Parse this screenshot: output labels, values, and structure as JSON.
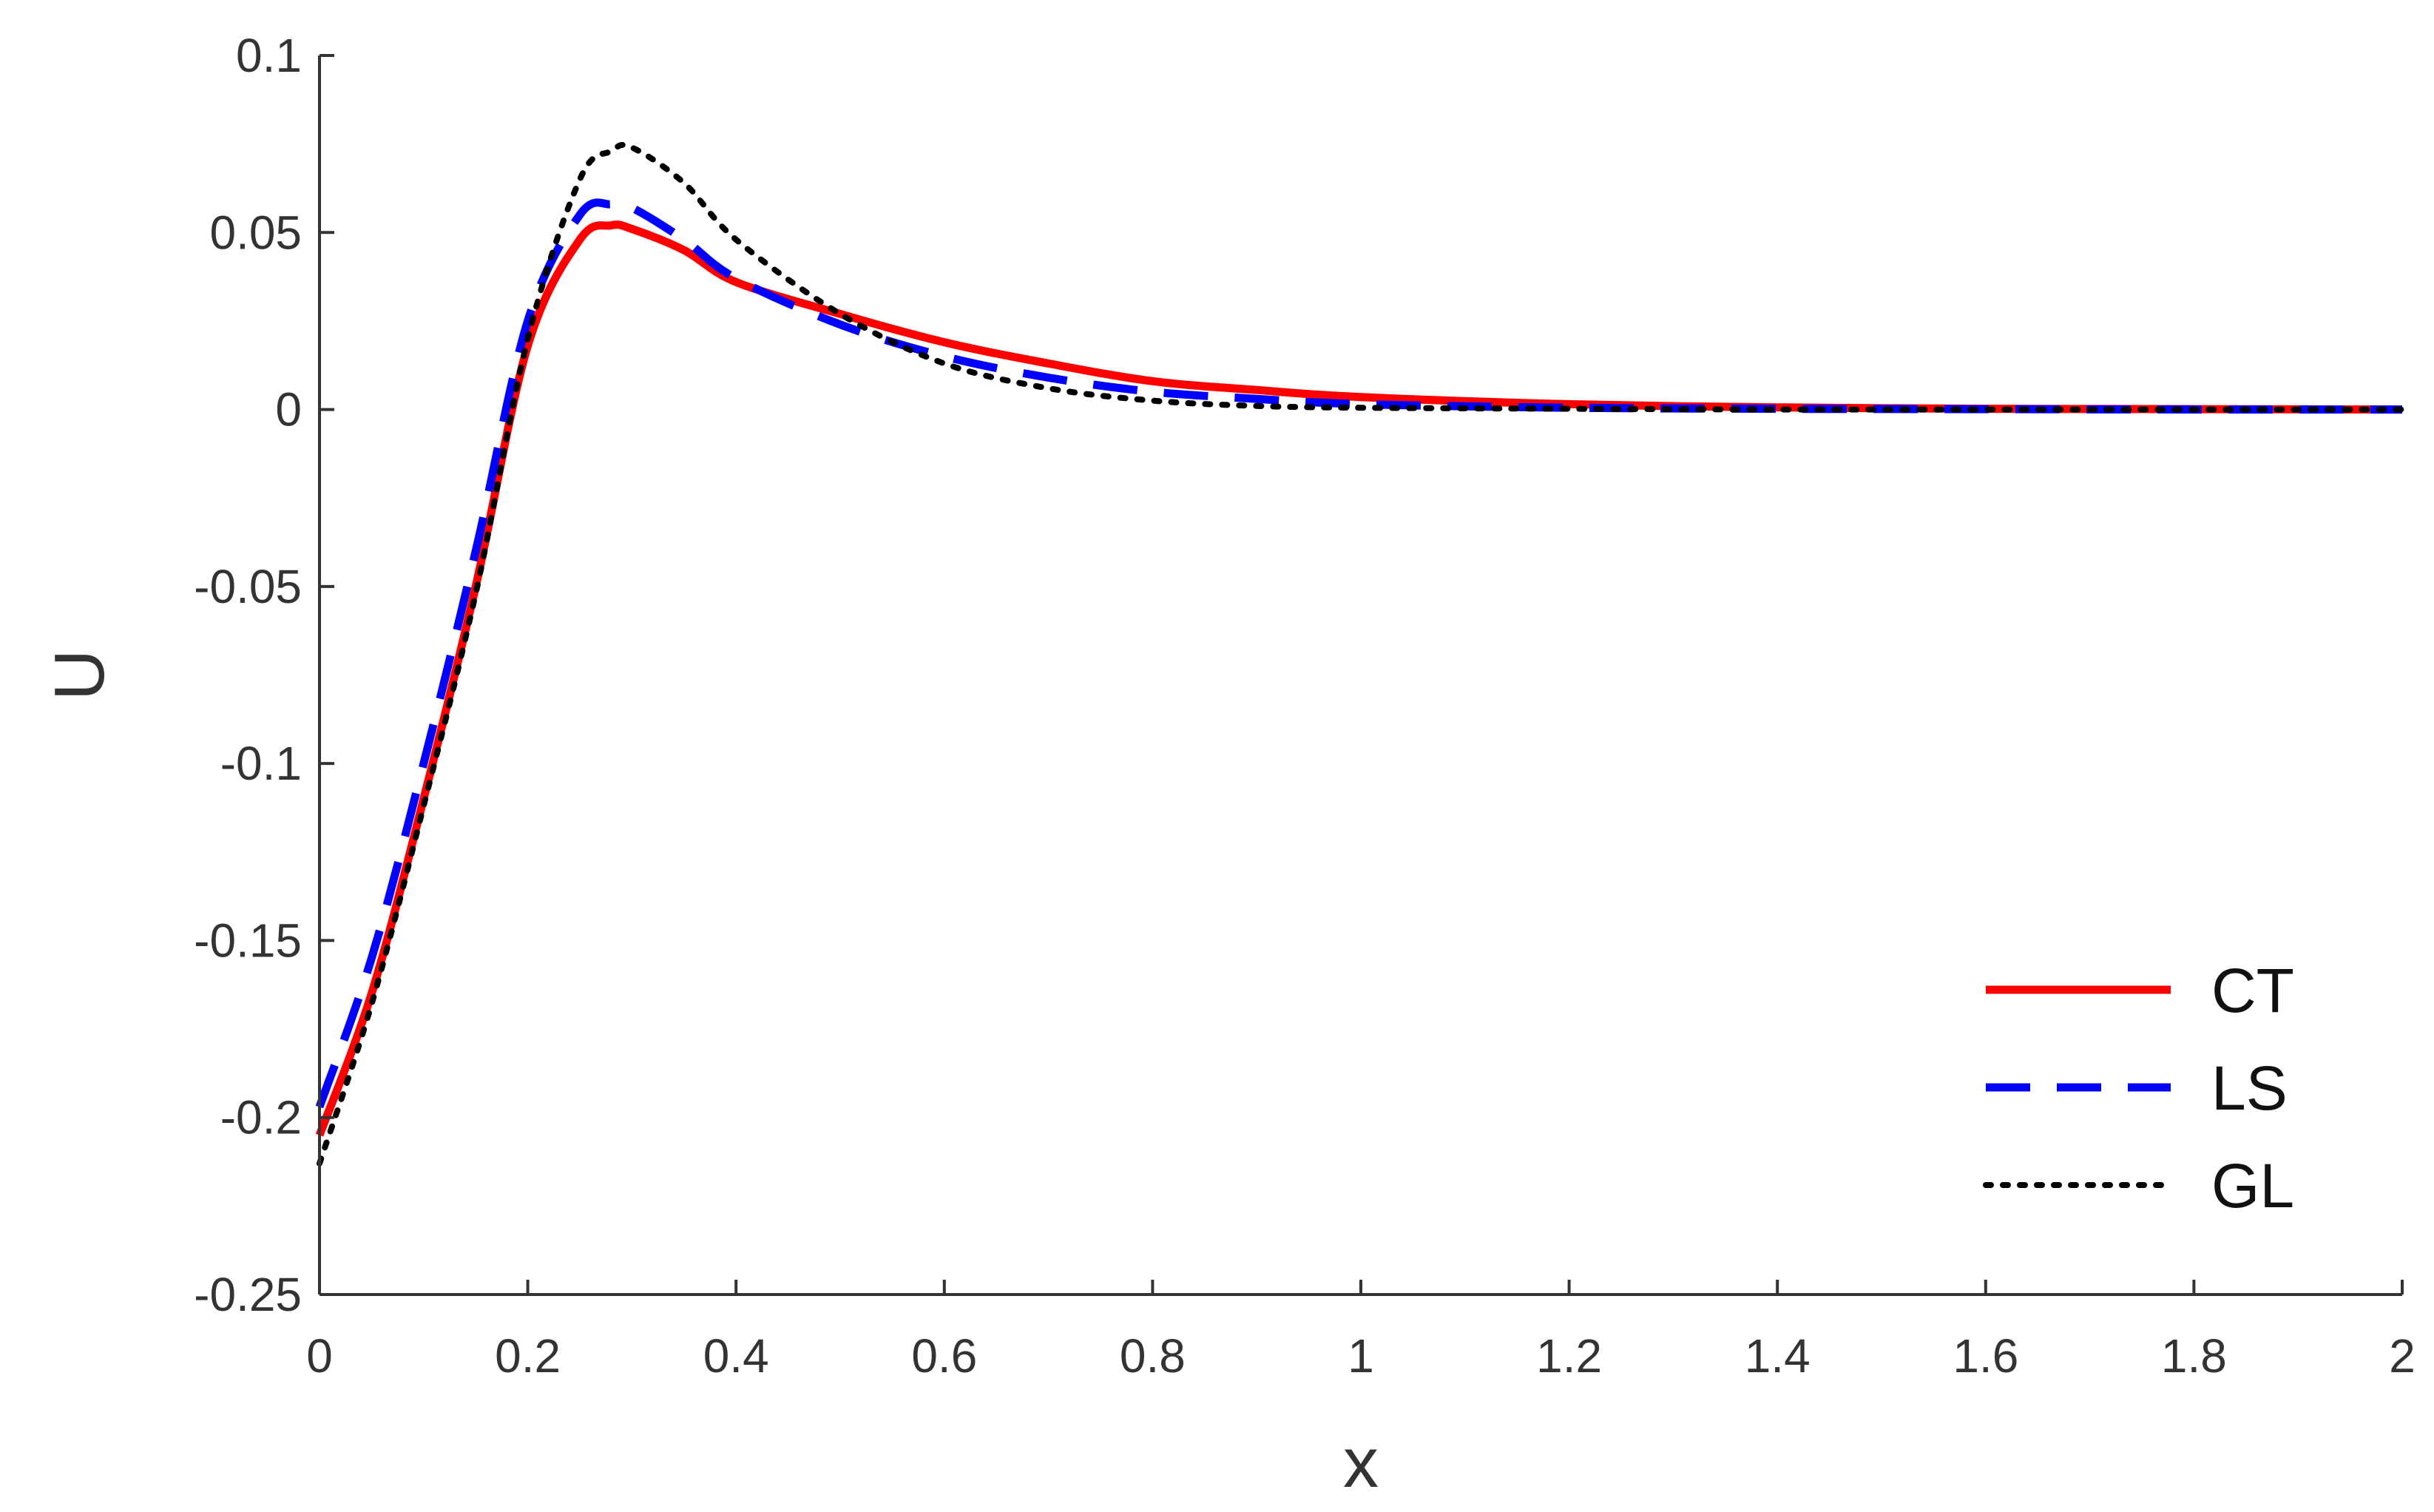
{
  "chart_data": {
    "type": "line",
    "title": "",
    "xlabel": "x",
    "ylabel": "U",
    "xlim": [
      0,
      2
    ],
    "ylim": [
      -0.25,
      0.1
    ],
    "xticks": [
      0,
      0.2,
      0.4,
      0.6,
      0.8,
      1,
      1.2,
      1.4,
      1.6,
      1.8,
      2
    ],
    "xtick_labels": [
      "0",
      "0.2",
      "0.4",
      "0.6",
      "0.8",
      "1",
      "1.2",
      "1.4",
      "1.6",
      "1.8",
      "2"
    ],
    "yticks": [
      0.1,
      0.05,
      0,
      -0.05,
      -0.1,
      -0.15,
      -0.2,
      -0.25
    ],
    "ytick_labels": [
      "0.1",
      "0.05",
      "0",
      "-0.05",
      "-0.1",
      "-0.15",
      "-0.2",
      "-0.25"
    ],
    "grid": false,
    "legend_position": "bottom-right",
    "series": [
      {
        "name": "CT",
        "color": "#ff0000",
        "style": "solid",
        "x": [
          0,
          0.05,
          0.1,
          0.15,
          0.2,
          0.25,
          0.28,
          0.3,
          0.35,
          0.4,
          0.5,
          0.6,
          0.7,
          0.8,
          0.9,
          1.0,
          1.2,
          1.4,
          1.6,
          1.8,
          2.0
        ],
        "y": [
          -0.205,
          -0.165,
          -0.11,
          -0.05,
          0.018,
          0.048,
          0.052,
          0.051,
          0.045,
          0.036,
          0.027,
          0.019,
          0.013,
          0.008,
          0.0055,
          0.0035,
          0.0015,
          0.0006,
          0.0002,
          0.0001,
          0.0
        ]
      },
      {
        "name": "LS",
        "color": "#0000ff",
        "style": "dashed",
        "x": [
          0,
          0.05,
          0.1,
          0.15,
          0.2,
          0.25,
          0.28,
          0.3,
          0.35,
          0.4,
          0.5,
          0.6,
          0.7,
          0.8,
          0.9,
          1.0,
          1.2,
          1.4,
          1.6,
          1.8,
          2.0
        ],
        "y": [
          -0.197,
          -0.155,
          -0.1,
          -0.04,
          0.025,
          0.055,
          0.058,
          0.057,
          0.048,
          0.037,
          0.024,
          0.015,
          0.009,
          0.005,
          0.003,
          0.0015,
          0.0005,
          0.0002,
          0.0001,
          0.0,
          0.0
        ]
      },
      {
        "name": "GL",
        "color": "#000000",
        "style": "dotted",
        "x": [
          0,
          0.05,
          0.1,
          0.15,
          0.2,
          0.25,
          0.28,
          0.3,
          0.35,
          0.4,
          0.5,
          0.6,
          0.7,
          0.8,
          0.9,
          1.0,
          1.2,
          1.4,
          1.6,
          1.8,
          2.0
        ],
        "y": [
          -0.213,
          -0.168,
          -0.112,
          -0.052,
          0.02,
          0.065,
          0.073,
          0.074,
          0.064,
          0.048,
          0.027,
          0.013,
          0.006,
          0.0025,
          0.001,
          0.0005,
          0.0002,
          0.0,
          0.0,
          0.0,
          0.0
        ]
      }
    ]
  }
}
